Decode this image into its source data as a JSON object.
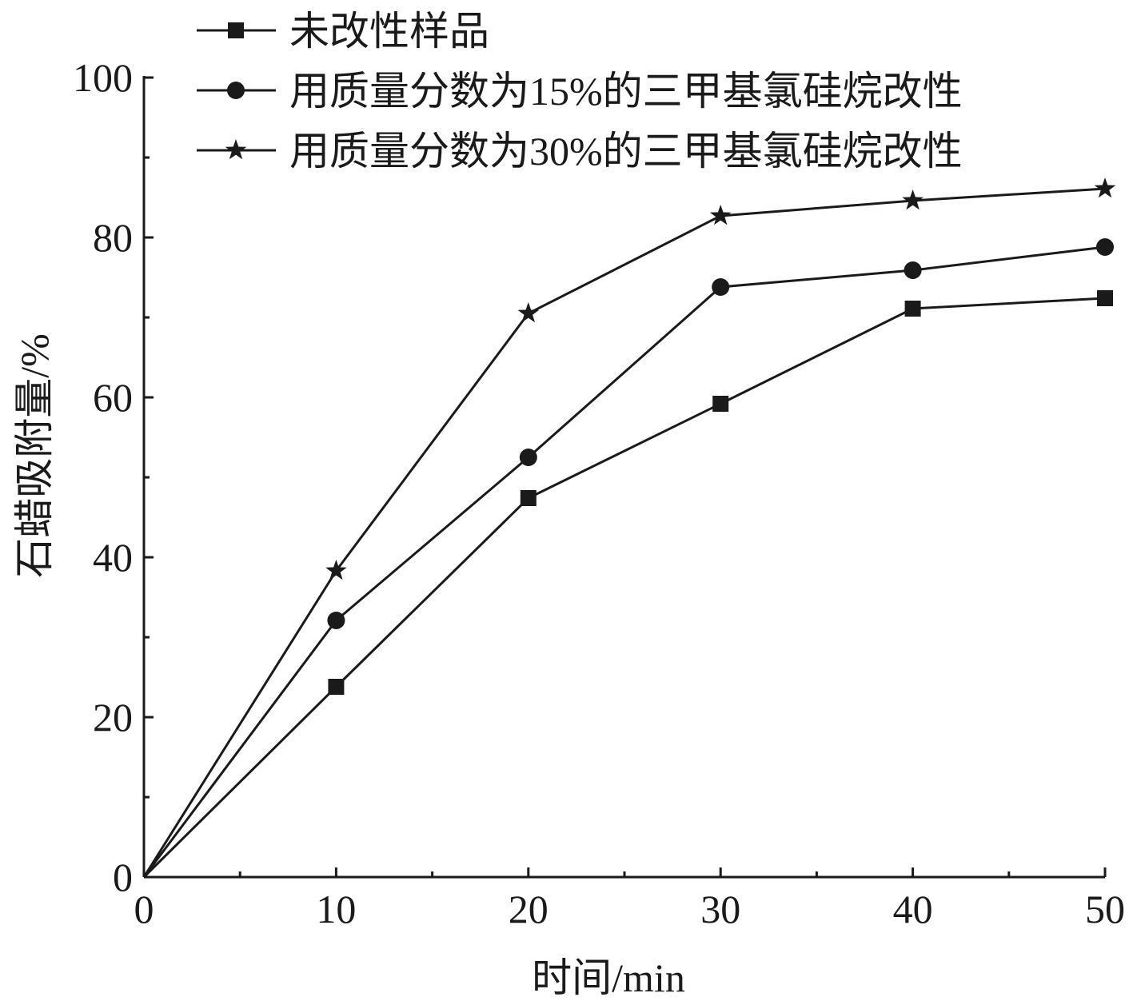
{
  "chart_data": {
    "type": "line",
    "title": "",
    "xlabel": "时间/min",
    "ylabel": "石蜡吸附量/%",
    "x": [
      0,
      10,
      20,
      30,
      40,
      50
    ],
    "xlim": [
      0,
      50
    ],
    "ylim": [
      0,
      100
    ],
    "x_ticks": [
      "0",
      "10",
      "20",
      "30",
      "40",
      "50"
    ],
    "y_ticks": [
      "0",
      "20",
      "40",
      "60",
      "80",
      "100"
    ],
    "grid": false,
    "legend_position": "top",
    "series": [
      {
        "name": "未改性样品",
        "marker": "square",
        "values": [
          0,
          23.8,
          47.4,
          59.2,
          71.1,
          72.4
        ]
      },
      {
        "name": "用质量分数为15%的三甲基氯硅烷改性",
        "marker": "circle",
        "values": [
          0,
          32.1,
          52.5,
          73.8,
          75.9,
          78.8
        ]
      },
      {
        "name": "用质量分数为30%的三甲基氯硅烷改性",
        "marker": "star",
        "values": [
          0,
          38.3,
          70.5,
          82.7,
          84.6,
          86.1
        ]
      }
    ],
    "colors": {
      "line": "#1a1a1a",
      "background": "#ffffff"
    }
  }
}
